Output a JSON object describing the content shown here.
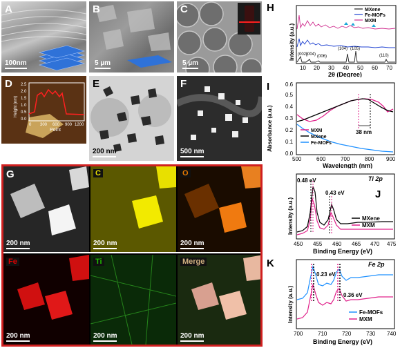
{
  "panels": {
    "A": {
      "label": "A",
      "scale": "100nm"
    },
    "B": {
      "label": "B",
      "scale": "5 µm"
    },
    "C": {
      "label": "C",
      "scale": "5 µm"
    },
    "D": {
      "label": "D",
      "ylabel": "Height (nm)",
      "xlabel": "Point",
      "yticks": [
        "2.5",
        "2.0",
        "1.5",
        "1.0",
        "0.5",
        "0.0"
      ],
      "xticks": [
        "0",
        "300",
        "600",
        "900",
        "1200"
      ]
    },
    "E": {
      "label": "E",
      "scale": "200 nm"
    },
    "F": {
      "label": "F",
      "scale": "500 nm"
    },
    "G": {
      "label": "G",
      "tiles": [
        {
          "name": "haadf",
          "text": "",
          "scale": "200 nm"
        },
        {
          "name": "c",
          "text": "C",
          "scale": "200 nm",
          "color": "#e8e000"
        },
        {
          "name": "o",
          "text": "O",
          "scale": "200 nm",
          "color": "#e87a00"
        },
        {
          "name": "fe",
          "text": "Fe",
          "scale": "200 nm",
          "color": "#e00000"
        },
        {
          "name": "ti",
          "text": "Ti",
          "scale": "200 nm",
          "color": "#20c000"
        },
        {
          "name": "merge",
          "text": "Merge",
          "scale": "200 nm",
          "color": "#d0b080"
        }
      ]
    },
    "H": {
      "label": "H",
      "legend": [
        "MXene",
        "Fe-MOFs",
        "MXM"
      ],
      "xlabel": "2θ (Degree)",
      "ylabel": "Intensity (a.u.)",
      "xticks": [
        "10",
        "20",
        "30",
        "40",
        "50",
        "60",
        "70"
      ],
      "peaks": [
        "(002)",
        "(004)",
        "(006)",
        "(104)",
        "(105)",
        "(110)"
      ]
    },
    "I": {
      "label": "I",
      "legend": [
        "MXM",
        "MXene",
        "Fe-MOFs"
      ],
      "xlabel": "Wavelength (nm)",
      "ylabel": "Absorbance (a.u.)",
      "xticks": [
        "500",
        "600",
        "700",
        "800",
        "900"
      ],
      "yticks": [
        "0.0",
        "0.1",
        "0.2",
        "0.3",
        "0.4",
        "0.5",
        "0.6"
      ],
      "annotation": "38 nm"
    },
    "J": {
      "label": "J",
      "title": "Ti 2p",
      "legend": [
        "MXene",
        "MXM"
      ],
      "xlabel": "Binding Energy (eV)",
      "ylabel": "Intensity (a.u.)",
      "xticks": [
        "450",
        "455",
        "460",
        "465",
        "470",
        "475"
      ],
      "ann1": "0.48 eV",
      "ann2": "0.43 eV"
    },
    "K": {
      "label": "K",
      "title": "Fe 2p",
      "legend": [
        "Fe-MOFs",
        "MXM"
      ],
      "xlabel": "Binding Energy (eV)",
      "ylabel": "Intensity (a.u.)",
      "xticks": [
        "700",
        "710",
        "720",
        "730",
        "740"
      ],
      "ann1": "0.23 eV",
      "ann2": "0.36 eV"
    }
  },
  "colors": {
    "mxene": "#000000",
    "femofs": "#1e90ff",
    "mxm": "#e0208a",
    "xrd_mxene": "#222222",
    "xrd_femofs": "#1c3fd0",
    "xrd_mxm": "#d03090",
    "frame": "#d02020"
  }
}
